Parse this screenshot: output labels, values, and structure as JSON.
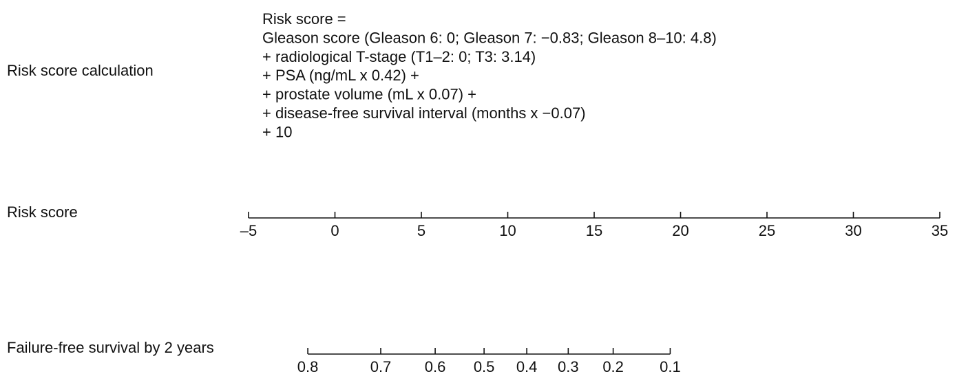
{
  "chart_data": {
    "type": "nomogram",
    "formula": {
      "label": "Risk score calculation",
      "lines": [
        "Risk score =",
        "Gleason score (Gleason   6: 0; Gleason 7: −0.83; Gleason 8–10: 4.8)",
        "+ radiological T-stage (T1–2: 0; T3: 3.14)",
        "+ PSA (ng/mL x 0.42) +",
        "+ prostate volume (mL x 0.07) +",
        "+ disease-free survival interval (months x −0.07)",
        "+ 10"
      ]
    },
    "axes": [
      {
        "label": "Risk score",
        "xlim": [
          -5,
          35
        ],
        "xticks": [
          {
            "value": -5,
            "label": "–5"
          },
          0,
          5,
          10,
          15,
          20,
          25,
          30,
          35
        ]
      },
      {
        "label": "Failure-free survival by 2 years",
        "xticks": [
          0.8,
          0.7,
          0.6,
          0.5,
          0.4,
          0.3,
          0.2,
          0.1
        ],
        "risk_score": [
          -1.57,
          2.65,
          5.8,
          8.63,
          11.1,
          13.5,
          16.1,
          19.4
        ]
      }
    ]
  }
}
